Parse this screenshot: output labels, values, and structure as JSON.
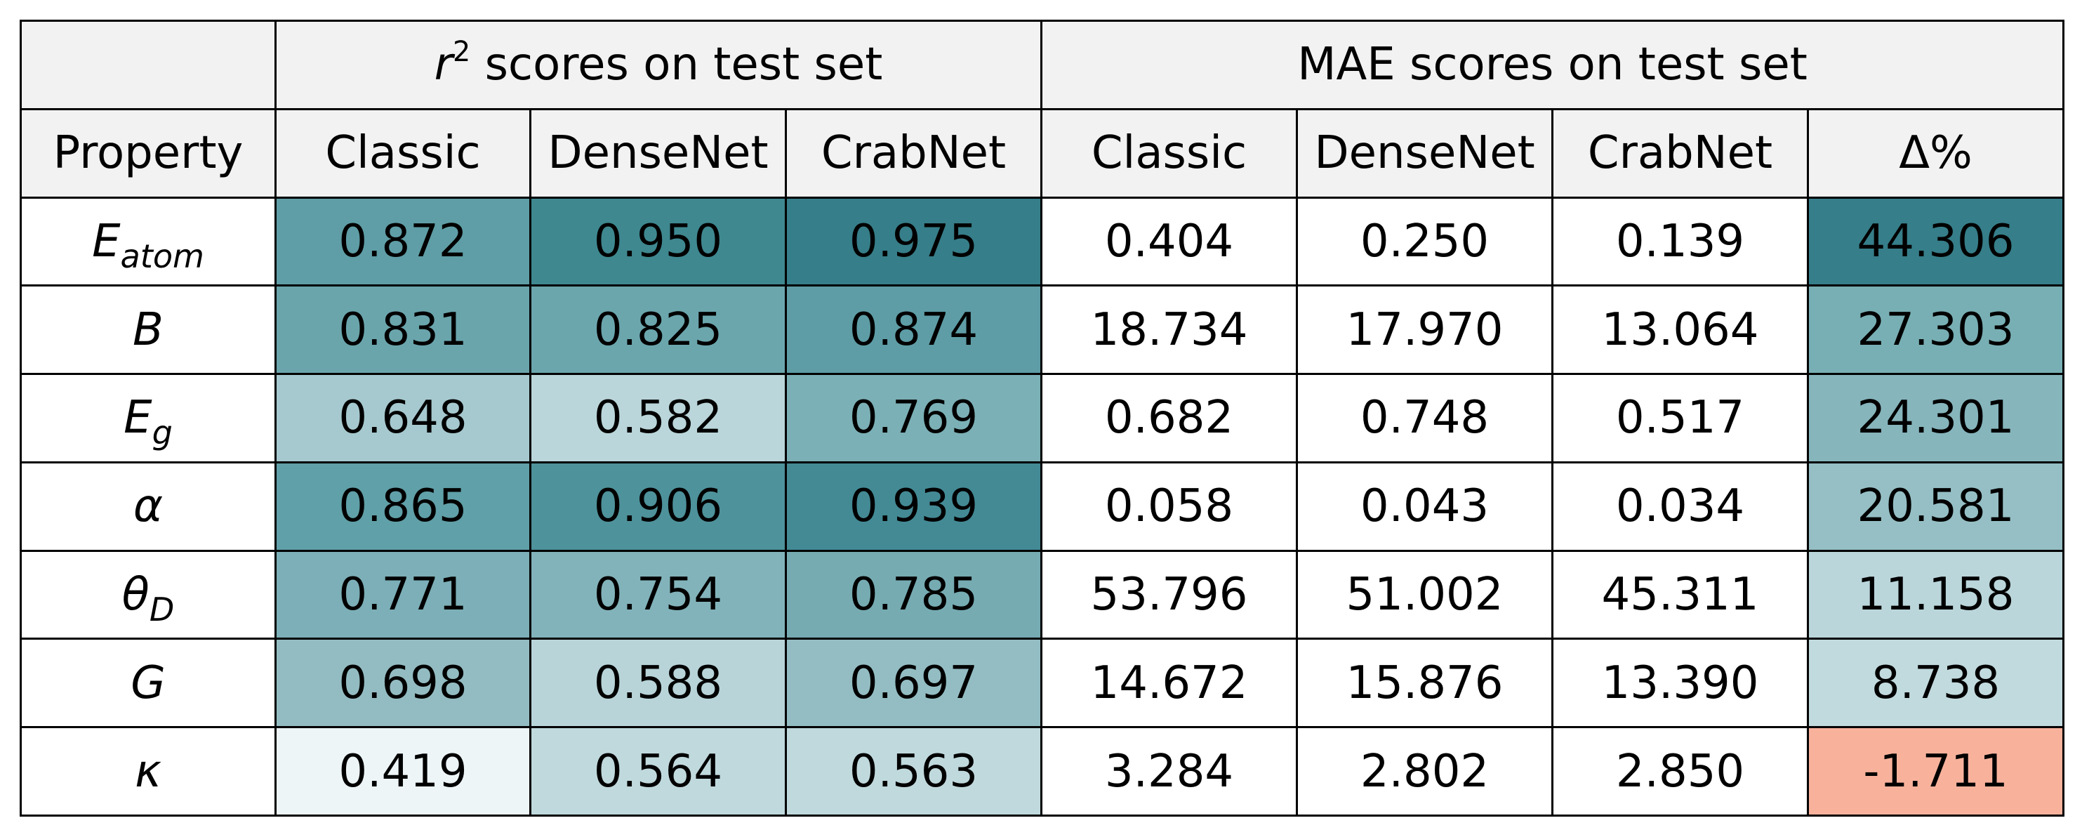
{
  "table": {
    "group_headers": {
      "r2": {
        "var": "r",
        "sup": "2",
        "rest": " scores on test set"
      },
      "mae": "MAE scores on test set"
    },
    "columns": [
      "Property",
      "Classic",
      "DenseNet",
      "CrabNet",
      "Classic",
      "DenseNet",
      "CrabNet",
      "Δ%"
    ],
    "rows": [
      {
        "symbol": "E",
        "sub": "atom",
        "r2": [
          "0.872",
          "0.950",
          "0.975"
        ],
        "r2_colors": [
          "#5f9ea6",
          "#3f8890",
          "#367e89"
        ],
        "mae": [
          "0.404",
          "0.250",
          "0.139"
        ],
        "delta": "44.306",
        "delta_color": "#367e89"
      },
      {
        "symbol": "B",
        "sub": "",
        "r2": [
          "0.831",
          "0.825",
          "0.874"
        ],
        "r2_colors": [
          "#6aa5ac",
          "#6ba6ad",
          "#5e9da6"
        ],
        "mae": [
          "18.734",
          "17.970",
          "13.064"
        ],
        "delta": "27.303",
        "delta_color": "#78afb4"
      },
      {
        "symbol": "E",
        "sub": "g",
        "r2": [
          "0.648",
          "0.582",
          "0.769"
        ],
        "r2_colors": [
          "#a6c9cf",
          "#bad6da",
          "#7bb0b6"
        ],
        "mae": [
          "0.682",
          "0.748",
          "0.517"
        ],
        "delta": "24.301",
        "delta_color": "#86b5bc"
      },
      {
        "symbol": "α",
        "sub": "",
        "r2": [
          "0.865",
          "0.906",
          "0.939"
        ],
        "r2_colors": [
          "#60a0a8",
          "#4e929b",
          "#438a95"
        ],
        "mae": [
          "0.058",
          "0.043",
          "0.034"
        ],
        "delta": "20.581",
        "delta_color": "#95bfc5"
      },
      {
        "symbol": "θ",
        "sub": "D",
        "r2": [
          "0.771",
          "0.754",
          "0.785"
        ],
        "r2_colors": [
          "#7cafb7",
          "#82b3ba",
          "#76abb2"
        ],
        "mae": [
          "53.796",
          "51.002",
          "45.311"
        ],
        "delta": "11.158",
        "delta_color": "#bad6db"
      },
      {
        "symbol": "G",
        "sub": "",
        "r2": [
          "0.698",
          "0.588",
          "0.697"
        ],
        "r2_colors": [
          "#93bcc2",
          "#b8d4d9",
          "#93bdc3"
        ],
        "mae": [
          "14.672",
          "15.876",
          "13.390"
        ],
        "delta": "8.738",
        "delta_color": "#c1dade"
      },
      {
        "symbol": "κ",
        "sub": "",
        "r2": [
          "0.419",
          "0.564",
          "0.563"
        ],
        "r2_colors": [
          "#edf5f7",
          "#c0d9dd",
          "#c0d9dd"
        ],
        "mae": [
          "3.284",
          "2.802",
          "2.850"
        ],
        "delta": "-1.711",
        "delta_color": "#f8b29c"
      }
    ]
  }
}
